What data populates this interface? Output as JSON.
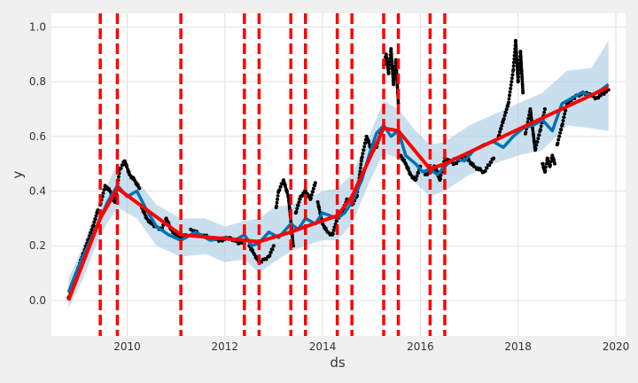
{
  "chart_data": {
    "type": "line",
    "xlabel": "ds",
    "ylabel": "y",
    "xlim": [
      2008.45,
      2020.2
    ],
    "ylim": [
      -0.13,
      1.05
    ],
    "x_ticks": [
      "2010",
      "2012",
      "2014",
      "2016",
      "2018",
      "2020"
    ],
    "y_ticks": [
      "0.0",
      "0.2",
      "0.4",
      "0.6",
      "0.8",
      "1.0"
    ],
    "grid": true,
    "colors": {
      "observed": "#000000",
      "forecast": "#0072B2",
      "interval": "#a6cae3",
      "trend": "#ff0000",
      "changepoints": "#ff0000",
      "plot_bg": "#ffffff",
      "page_bg": "#f0f0f0",
      "grid": "#e1e1e1"
    },
    "changepoints": [
      2009.45,
      2009.8,
      2011.1,
      2012.4,
      2012.7,
      2013.35,
      2013.65,
      2014.3,
      2014.6,
      2015.25,
      2015.55,
      2016.2,
      2016.5
    ],
    "trend": {
      "x": [
        2008.8,
        2009.45,
        2009.8,
        2011.1,
        2012.4,
        2012.7,
        2013.35,
        2013.65,
        2014.3,
        2014.6,
        2015.25,
        2015.55,
        2016.2,
        2016.5,
        2019.85
      ],
      "y": [
        0.0,
        0.3,
        0.41,
        0.24,
        0.22,
        0.215,
        0.25,
        0.27,
        0.31,
        0.38,
        0.63,
        0.62,
        0.48,
        0.5,
        0.78
      ]
    },
    "interval": {
      "x": [
        2008.8,
        2009.1,
        2009.45,
        2009.8,
        2010.2,
        2010.6,
        2011.1,
        2011.6,
        2012.0,
        2012.4,
        2012.7,
        2013.0,
        2013.35,
        2013.65,
        2014.0,
        2014.3,
        2014.6,
        2014.95,
        2015.25,
        2015.55,
        2015.9,
        2016.2,
        2016.5,
        2017.0,
        2017.5,
        2018.0,
        2018.5,
        2019.0,
        2019.5,
        2019.85
      ],
      "upper": [
        0.08,
        0.2,
        0.37,
        0.5,
        0.44,
        0.35,
        0.3,
        0.3,
        0.27,
        0.29,
        0.3,
        0.34,
        0.35,
        0.37,
        0.4,
        0.41,
        0.46,
        0.6,
        0.73,
        0.7,
        0.62,
        0.57,
        0.58,
        0.64,
        0.68,
        0.72,
        0.76,
        0.84,
        0.85,
        0.95
      ],
      "lower": [
        -0.03,
        0.08,
        0.24,
        0.34,
        0.3,
        0.2,
        0.16,
        0.17,
        0.14,
        0.15,
        0.1,
        0.14,
        0.18,
        0.2,
        0.22,
        0.22,
        0.28,
        0.43,
        0.54,
        0.52,
        0.43,
        0.38,
        0.4,
        0.46,
        0.5,
        0.53,
        0.55,
        0.64,
        0.63,
        0.62
      ]
    },
    "forecast": {
      "x": [
        2008.8,
        2008.95,
        2009.1,
        2009.3,
        2009.45,
        2009.6,
        2009.8,
        2010.0,
        2010.2,
        2010.4,
        2010.6,
        2010.85,
        2011.1,
        2011.4,
        2011.7,
        2012.0,
        2012.2,
        2012.4,
        2012.55,
        2012.7,
        2012.9,
        2013.1,
        2013.35,
        2013.5,
        2013.65,
        2013.85,
        2014.0,
        2014.15,
        2014.3,
        2014.45,
        2014.6,
        2014.8,
        2014.95,
        2015.1,
        2015.25,
        2015.4,
        2015.55,
        2015.7,
        2015.9,
        2016.05,
        2016.2,
        2016.35,
        2016.5,
        2016.7,
        2016.9,
        2017.1,
        2017.3,
        2017.5,
        2017.7,
        2017.9,
        2018.1,
        2018.3,
        2018.5,
        2018.7,
        2018.9,
        2019.1,
        2019.3,
        2019.5,
        2019.7,
        2019.85
      ],
      "y": [
        0.03,
        0.1,
        0.16,
        0.24,
        0.3,
        0.36,
        0.42,
        0.38,
        0.4,
        0.33,
        0.27,
        0.24,
        0.22,
        0.25,
        0.22,
        0.23,
        0.22,
        0.24,
        0.2,
        0.21,
        0.25,
        0.23,
        0.28,
        0.26,
        0.3,
        0.28,
        0.32,
        0.31,
        0.3,
        0.32,
        0.36,
        0.44,
        0.53,
        0.61,
        0.64,
        0.6,
        0.62,
        0.53,
        0.5,
        0.47,
        0.48,
        0.46,
        0.49,
        0.52,
        0.51,
        0.55,
        0.57,
        0.58,
        0.56,
        0.6,
        0.63,
        0.64,
        0.66,
        0.62,
        0.72,
        0.74,
        0.76,
        0.75,
        0.77,
        0.79
      ]
    },
    "observed_segments": [
      {
        "x": [
          2008.8,
          2008.9,
          2009.0,
          2009.1,
          2009.2,
          2009.3,
          2009.4
        ],
        "y": [
          0.01,
          0.05,
          0.12,
          0.17,
          0.22,
          0.27,
          0.33
        ]
      },
      {
        "x": [
          2009.45,
          2009.55,
          2009.65,
          2009.75,
          2009.85,
          2009.95,
          2010.05,
          2010.15,
          2010.25
        ],
        "y": [
          0.35,
          0.42,
          0.4,
          0.36,
          0.48,
          0.51,
          0.46,
          0.44,
          0.41
        ]
      },
      {
        "x": [
          2010.3,
          2010.4,
          2010.5,
          2010.6,
          2010.7,
          2010.8,
          2010.9,
          2011.0,
          2011.1,
          2011.2
        ],
        "y": [
          0.34,
          0.3,
          0.28,
          0.27,
          0.26,
          0.3,
          0.26,
          0.24,
          0.23,
          0.24
        ]
      },
      {
        "x": [
          2011.3,
          2011.5,
          2011.7,
          2011.9,
          2012.1,
          2012.3,
          2012.4
        ],
        "y": [
          0.26,
          0.24,
          0.23,
          0.22,
          0.23,
          0.21,
          0.22
        ]
      },
      {
        "x": [
          2012.5,
          2012.6,
          2012.7,
          2012.8,
          2012.9,
          2013.0
        ],
        "y": [
          0.2,
          0.17,
          0.14,
          0.15,
          0.16,
          0.2
        ]
      },
      {
        "x": [
          2013.05,
          2013.1,
          2013.2,
          2013.3,
          2013.4
        ],
        "y": [
          0.34,
          0.4,
          0.44,
          0.38,
          0.2
        ]
      },
      {
        "x": [
          2013.45,
          2013.55,
          2013.65,
          2013.75,
          2013.85
        ],
        "y": [
          0.32,
          0.38,
          0.4,
          0.37,
          0.43
        ]
      },
      {
        "x": [
          2013.9,
          2014.0,
          2014.1,
          2014.2,
          2014.3,
          2014.4,
          2014.5
        ],
        "y": [
          0.36,
          0.28,
          0.25,
          0.24,
          0.3,
          0.32,
          0.37
        ]
      },
      {
        "x": [
          2014.6,
          2014.7,
          2014.8,
          2014.9,
          2015.0,
          2015.1,
          2015.2
        ],
        "y": [
          0.35,
          0.38,
          0.52,
          0.6,
          0.55,
          0.56,
          0.62
        ]
      },
      {
        "x": [
          2015.25,
          2015.3,
          2015.35,
          2015.4,
          2015.45,
          2015.5,
          2015.55
        ],
        "y": [
          0.86,
          0.9,
          0.83,
          0.92,
          0.79,
          0.88,
          0.72
        ]
      },
      {
        "x": [
          2015.6,
          2015.7,
          2015.8,
          2015.9,
          2016.0
        ],
        "y": [
          0.53,
          0.5,
          0.46,
          0.44,
          0.49
        ]
      },
      {
        "x": [
          2016.1,
          2016.2,
          2016.3,
          2016.4,
          2016.5,
          2016.7,
          2016.9,
          2017.1,
          2017.3,
          2017.5
        ],
        "y": [
          0.46,
          0.47,
          0.49,
          0.44,
          0.52,
          0.5,
          0.53,
          0.49,
          0.47,
          0.52
        ]
      },
      {
        "x": [
          2017.6,
          2017.7,
          2017.8,
          2017.9,
          2017.95,
          2018.0,
          2018.05,
          2018.1
        ],
        "y": [
          0.6,
          0.66,
          0.72,
          0.84,
          0.95,
          0.8,
          0.91,
          0.76
        ]
      },
      {
        "x": [
          2018.15,
          2018.25,
          2018.35,
          2018.45,
          2018.55
        ],
        "y": [
          0.61,
          0.7,
          0.55,
          0.62,
          0.7
        ]
      },
      {
        "x": [
          2018.5,
          2018.55,
          2018.6,
          2018.65,
          2018.7,
          2018.75
        ],
        "y": [
          0.5,
          0.47,
          0.52,
          0.49,
          0.53,
          0.5
        ]
      },
      {
        "x": [
          2018.8,
          2018.9,
          2019.0,
          2019.2,
          2019.4,
          2019.6,
          2019.85
        ],
        "y": [
          0.57,
          0.64,
          0.72,
          0.75,
          0.76,
          0.74,
          0.77
        ]
      }
    ]
  }
}
